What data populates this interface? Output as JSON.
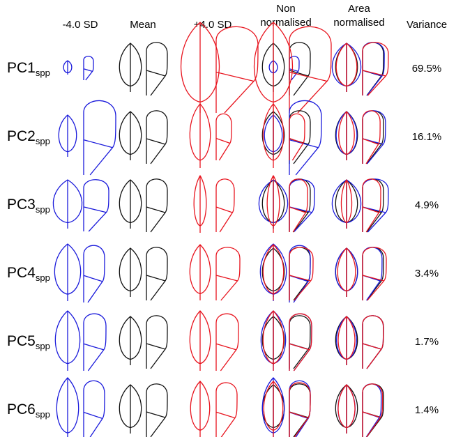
{
  "columns": [
    [
      "-4.0 SD"
    ],
    [
      "Mean"
    ],
    [
      "+4.0 SD"
    ],
    [
      "Non",
      "normalised"
    ],
    [
      "Area",
      "normalised"
    ],
    [
      "Variance"
    ]
  ],
  "rows": [
    {
      "label": "PC1",
      "subscript": "spp",
      "variance": "69.5%"
    },
    {
      "label": "PC2",
      "subscript": "spp",
      "variance": "16.1%"
    },
    {
      "label": "PC3",
      "subscript": "spp",
      "variance": "4.9%"
    },
    {
      "label": "PC4",
      "subscript": "spp",
      "variance": "3.4%"
    },
    {
      "label": "PC5",
      "subscript": "spp",
      "variance": "1.7%"
    },
    {
      "label": "PC6",
      "subscript": "spp",
      "variance": "1.4%"
    }
  ]
}
